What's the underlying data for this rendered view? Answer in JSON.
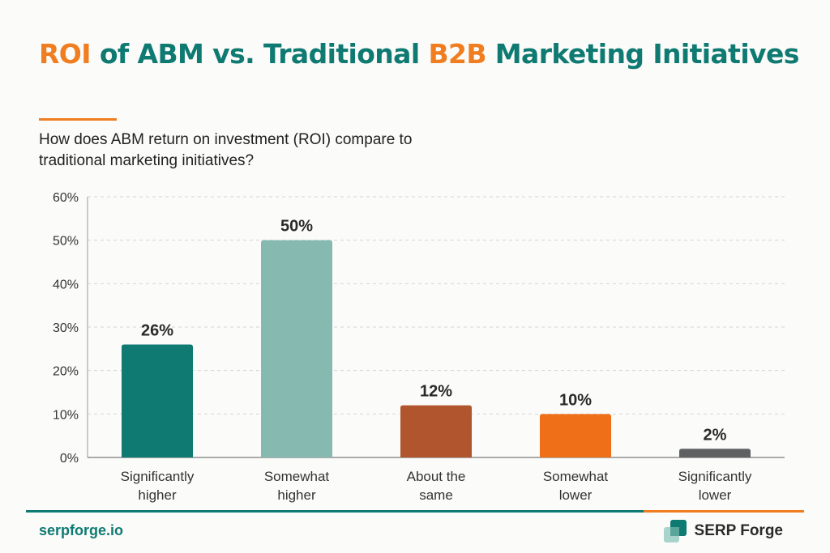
{
  "header": {
    "title_parts": [
      {
        "text": "ROI",
        "highlight": true
      },
      {
        "text": " of ABM vs. Traditional ",
        "highlight": false
      },
      {
        "text": "B2B",
        "highlight": true
      },
      {
        "text": " Marketing Initiatives",
        "highlight": false
      }
    ],
    "subtitle": "How does ABM return on investment (ROI) compare to traditional marketing initiatives?"
  },
  "colors": {
    "teal": "#0e7a72",
    "orange": "#f07d1f",
    "light_teal": "#86bab1",
    "rust": "#b0552e",
    "gray": "#5f6062"
  },
  "chart_data": {
    "type": "bar",
    "title": "",
    "xlabel": "",
    "ylabel": "",
    "ylim": [
      0,
      60
    ],
    "yticks": [
      0,
      10,
      20,
      30,
      40,
      50,
      60
    ],
    "ytick_format": "{v}%",
    "grid": true,
    "categories": [
      [
        "Significantly",
        "higher"
      ],
      [
        "Somewhat",
        "higher"
      ],
      [
        "About the",
        "same"
      ],
      [
        "Somewhat",
        "lower"
      ],
      [
        "Significantly",
        "lower"
      ]
    ],
    "values": [
      26,
      50,
      12,
      10,
      2
    ],
    "value_labels": [
      "26%",
      "50%",
      "12%",
      "10%",
      "2%"
    ],
    "bar_colors": [
      "#0e7a72",
      "#86bab1",
      "#b0552e",
      "#ee6f17",
      "#5f6062"
    ]
  },
  "footer": {
    "site": "serpforge.io",
    "brand": "SERP Forge",
    "logo_icon": "serp-forge-logo-icon"
  }
}
